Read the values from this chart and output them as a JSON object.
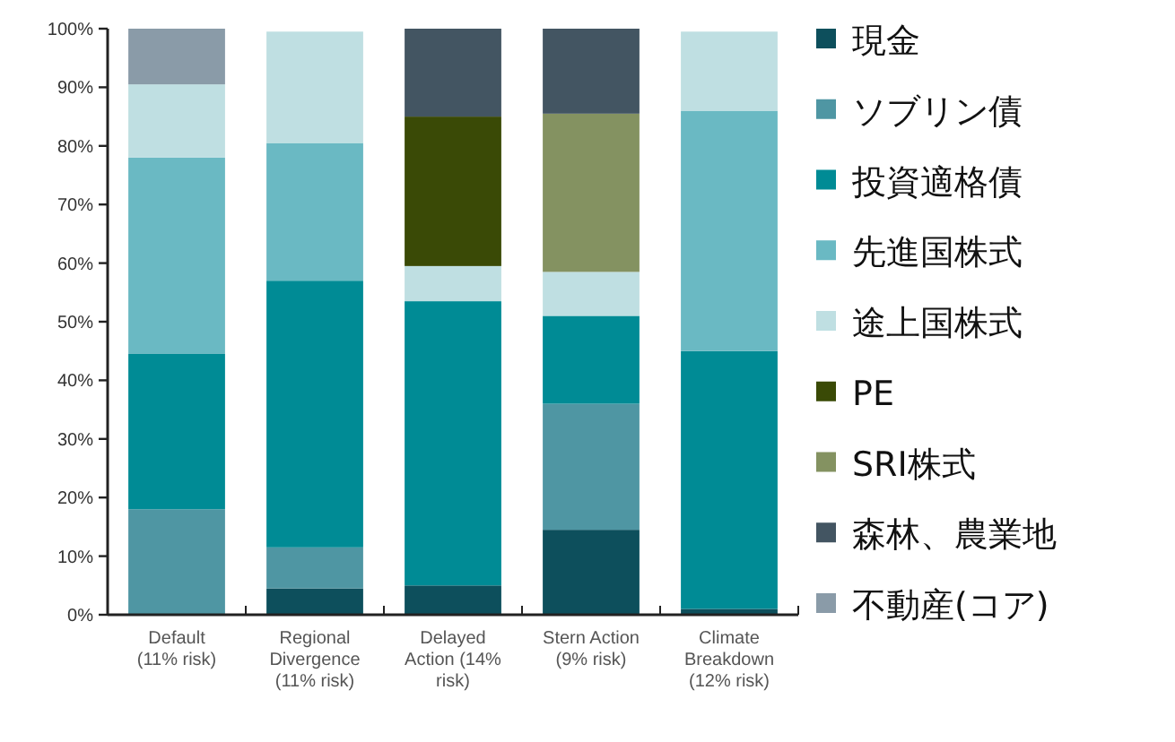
{
  "chart_data": {
    "type": "bar",
    "stacked": true,
    "categories": [
      "Default (11% risk)",
      "Regional Divergence (11% risk)",
      "Delayed Action (14% risk)",
      "Stern Action (9% risk)",
      "Climate Breakdown (12% risk)"
    ],
    "series": [
      {
        "name": "現金",
        "color": "#0d4f5c",
        "values": [
          0,
          4.5,
          5,
          14.5,
          1
        ]
      },
      {
        "name": "ソブリン債",
        "color": "#4f96a3",
        "values": [
          18,
          7,
          0,
          21.5,
          0
        ]
      },
      {
        "name": "投資適格債",
        "color": "#008b95",
        "values": [
          26.5,
          45.5,
          48.5,
          15,
          44
        ]
      },
      {
        "name": "先進国株式",
        "color": "#6ab9c3",
        "values": [
          33.5,
          23.5,
          0,
          0,
          41
        ]
      },
      {
        "name": "途上国株式",
        "color": "#bfdfe2",
        "values": [
          12.5,
          19,
          6,
          7.5,
          13.5
        ]
      },
      {
        "name": "PE",
        "color": "#3a4a06",
        "values": [
          0,
          0,
          25.5,
          0,
          0
        ]
      },
      {
        "name": "SRI株式",
        "color": "#849261",
        "values": [
          0,
          0,
          0,
          27,
          0
        ]
      },
      {
        "name": "森林、農業地",
        "color": "#435562",
        "values": [
          0,
          0,
          15,
          14.5,
          0
        ]
      },
      {
        "name": "不動産(コア)",
        "color": "#8a9ba8",
        "values": [
          9.5,
          0,
          0,
          0,
          0
        ]
      }
    ],
    "ylim": [
      0,
      100
    ],
    "yticks": [
      {
        "value": 0,
        "label": "0%"
      },
      {
        "value": 10,
        "label": "10%"
      },
      {
        "value": 20,
        "label": "20%"
      },
      {
        "value": 30,
        "label": "30%"
      },
      {
        "value": 40,
        "label": "40%"
      },
      {
        "value": 50,
        "label": "50%"
      },
      {
        "value": 60,
        "label": "60%"
      },
      {
        "value": 70,
        "label": "70%"
      },
      {
        "value": 80,
        "label": "80%"
      },
      {
        "value": 90,
        "label": "90%"
      },
      {
        "value": 100,
        "label": "100%"
      }
    ],
    "grid": false,
    "legend": "right"
  }
}
